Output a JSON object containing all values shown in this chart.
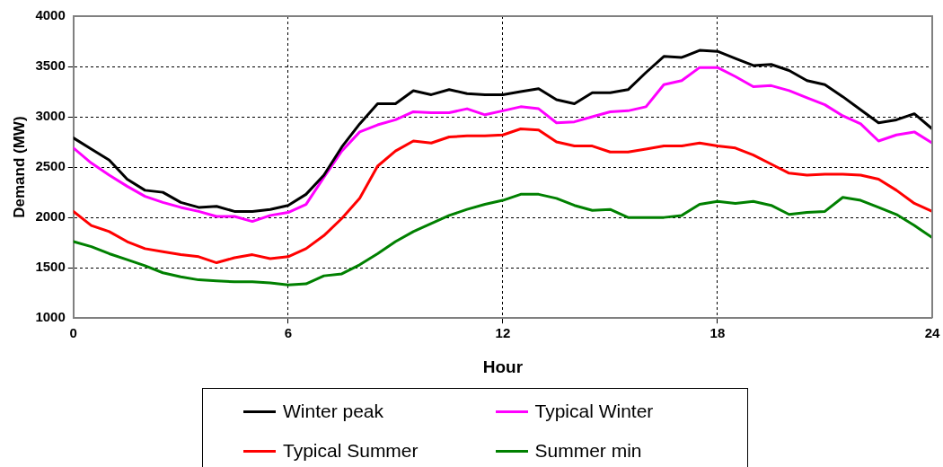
{
  "chart_data": {
    "type": "line",
    "xlabel": "Hour",
    "ylabel": "Demand (MW)",
    "x": [
      0,
      0.5,
      1,
      1.5,
      2,
      2.5,
      3,
      3.5,
      4,
      4.5,
      5,
      5.5,
      6,
      6.5,
      7,
      7.5,
      8,
      8.5,
      9,
      9.5,
      10,
      10.5,
      11,
      11.5,
      12,
      12.5,
      13,
      13.5,
      14,
      14.5,
      15,
      15.5,
      16,
      16.5,
      17,
      17.5,
      18,
      18.5,
      19,
      19.5,
      20,
      20.5,
      21,
      21.5,
      22,
      22.5,
      23,
      23.5,
      24
    ],
    "series": [
      {
        "name": "Winter peak",
        "color": "#000000",
        "values": [
          2790,
          2680,
          2570,
          2380,
          2270,
          2250,
          2150,
          2100,
          2110,
          2060,
          2060,
          2080,
          2120,
          2230,
          2420,
          2700,
          2930,
          3130,
          3130,
          3260,
          3220,
          3270,
          3230,
          3220,
          3220,
          3250,
          3280,
          3170,
          3130,
          3240,
          3240,
          3270,
          3440,
          3600,
          3590,
          3660,
          3650,
          3580,
          3510,
          3520,
          3460,
          3360,
          3320,
          3200,
          3070,
          2940,
          2970,
          3030,
          2880
        ]
      },
      {
        "name": "Typical Winter",
        "color": "#ff00ff",
        "values": [
          2690,
          2540,
          2420,
          2310,
          2210,
          2150,
          2100,
          2060,
          2010,
          2010,
          1960,
          2020,
          2050,
          2130,
          2400,
          2660,
          2850,
          2920,
          2970,
          3050,
          3040,
          3040,
          3080,
          3020,
          3060,
          3100,
          3080,
          2940,
          2950,
          3000,
          3050,
          3060,
          3100,
          3320,
          3360,
          3490,
          3490,
          3400,
          3300,
          3310,
          3260,
          3190,
          3120,
          3010,
          2930,
          2760,
          2820,
          2850,
          2740
        ]
      },
      {
        "name": "Typical Summer",
        "color": "#ff0000",
        "values": [
          2060,
          1920,
          1860,
          1760,
          1690,
          1660,
          1630,
          1610,
          1550,
          1600,
          1630,
          1590,
          1610,
          1690,
          1820,
          1990,
          2190,
          2510,
          2660,
          2760,
          2740,
          2800,
          2810,
          2810,
          2820,
          2880,
          2870,
          2750,
          2710,
          2710,
          2650,
          2650,
          2680,
          2710,
          2710,
          2740,
          2710,
          2690,
          2620,
          2530,
          2440,
          2420,
          2430,
          2430,
          2420,
          2380,
          2270,
          2140,
          2060
        ]
      },
      {
        "name": "Summer min",
        "color": "#008000",
        "values": [
          1760,
          1710,
          1640,
          1580,
          1520,
          1450,
          1410,
          1380,
          1370,
          1360,
          1360,
          1350,
          1330,
          1340,
          1420,
          1440,
          1530,
          1640,
          1760,
          1860,
          1940,
          2020,
          2080,
          2130,
          2170,
          2230,
          2230,
          2190,
          2120,
          2070,
          2080,
          2000,
          2000,
          2000,
          2020,
          2130,
          2160,
          2140,
          2160,
          2120,
          2030,
          2050,
          2060,
          2200,
          2170,
          2100,
          2030,
          1920,
          1800
        ]
      }
    ],
    "xlim": [
      0,
      24
    ],
    "xticks": [
      0,
      6,
      12,
      18,
      24
    ],
    "ylim": [
      1000,
      4000
    ],
    "yticks": [
      1000,
      1500,
      2000,
      2500,
      3000,
      3500,
      4000
    ],
    "grid": true,
    "legend": "bottom",
    "marker": "none",
    "line_style": "solid"
  }
}
